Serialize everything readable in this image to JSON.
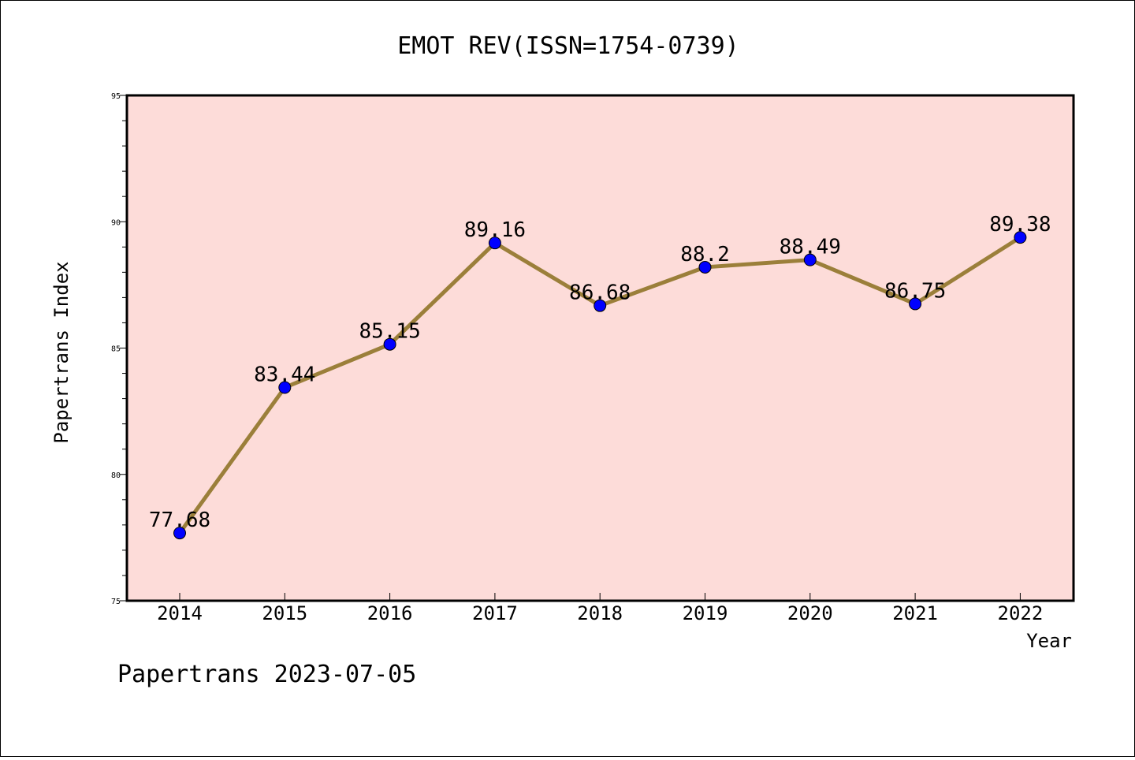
{
  "chart_data": {
    "type": "line",
    "title": "EMOT REV(ISSN=1754-0739)",
    "xlabel": "Year",
    "ylabel": "Papertrans Index",
    "footer": "Papertrans 2023-07-05",
    "categories": [
      "2014",
      "2015",
      "2016",
      "2017",
      "2018",
      "2019",
      "2020",
      "2021",
      "2022"
    ],
    "series": [
      {
        "values": [
          77.68,
          83.44,
          85.15,
          89.16,
          86.68,
          88.2,
          88.49,
          86.75,
          89.38
        ],
        "labels": [
          "77.68",
          "83.44",
          "85.15",
          "89.16",
          "86.68",
          "88.2",
          "88.49",
          "86.75",
          "89.38"
        ]
      }
    ],
    "ylim": [
      75,
      95
    ],
    "yticks": [
      "75",
      "80",
      "85",
      "90",
      "95"
    ],
    "grid": false,
    "colors": {
      "plot_bg": "#FDDCD9",
      "line": "#9B7F3A",
      "marker": "#0000FF",
      "frame": "#000000"
    }
  }
}
